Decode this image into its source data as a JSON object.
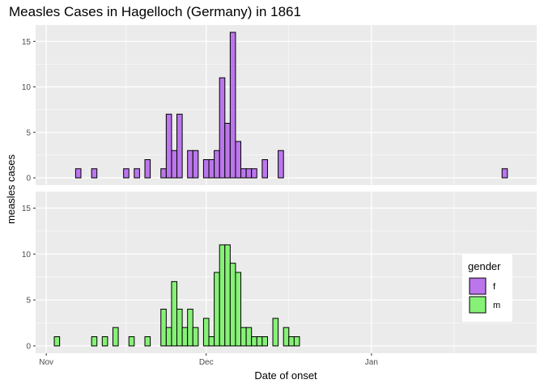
{
  "chart_data": {
    "type": "bar",
    "title": "Measles Cases in Hagelloch (Germany) in 1861",
    "xlabel": "Date of onset",
    "ylabel": "measles cases",
    "ylim": [
      0,
      16.8
    ],
    "xlim": [
      "1860-10-30",
      "1861-02-01"
    ],
    "y_ticks": [
      0,
      5,
      10,
      15
    ],
    "x_ticks": [
      {
        "date": "1860-11-01",
        "label": "Nov"
      },
      {
        "date": "1860-12-01",
        "label": "Dec"
      },
      {
        "date": "1861-01-01",
        "label": "Jan"
      }
    ],
    "grid": true,
    "legend": {
      "title": "gender",
      "position": "right",
      "items": [
        {
          "label": "f",
          "color": "#bb76ec"
        },
        {
          "label": "m",
          "color": "#86f176"
        }
      ]
    },
    "panels": [
      {
        "name": "f",
        "color": "#bb76ec",
        "bars": [
          {
            "date": "1860-11-07",
            "value": 1
          },
          {
            "date": "1860-11-10",
            "value": 1
          },
          {
            "date": "1860-11-16",
            "value": 1
          },
          {
            "date": "1860-11-18",
            "value": 1
          },
          {
            "date": "1860-11-20",
            "value": 2
          },
          {
            "date": "1860-11-23",
            "value": 1
          },
          {
            "date": "1860-11-24",
            "value": 7
          },
          {
            "date": "1860-11-25",
            "value": 3
          },
          {
            "date": "1860-11-26",
            "value": 7
          },
          {
            "date": "1860-11-28",
            "value": 3
          },
          {
            "date": "1860-11-29",
            "value": 3
          },
          {
            "date": "1860-12-01",
            "value": 2
          },
          {
            "date": "1860-12-02",
            "value": 2
          },
          {
            "date": "1860-12-03",
            "value": 3
          },
          {
            "date": "1860-12-04",
            "value": 11
          },
          {
            "date": "1860-12-05",
            "value": 6
          },
          {
            "date": "1860-12-06",
            "value": 16
          },
          {
            "date": "1860-12-07",
            "value": 4
          },
          {
            "date": "1860-12-08",
            "value": 1
          },
          {
            "date": "1860-12-09",
            "value": 1
          },
          {
            "date": "1860-12-10",
            "value": 1
          },
          {
            "date": "1860-12-12",
            "value": 2
          },
          {
            "date": "1860-12-15",
            "value": 3
          },
          {
            "date": "1861-01-26",
            "value": 1
          }
        ]
      },
      {
        "name": "m",
        "color": "#86f176",
        "bars": [
          {
            "date": "1860-11-03",
            "value": 1
          },
          {
            "date": "1860-11-10",
            "value": 1
          },
          {
            "date": "1860-11-12",
            "value": 1
          },
          {
            "date": "1860-11-14",
            "value": 2
          },
          {
            "date": "1860-11-17",
            "value": 1
          },
          {
            "date": "1860-11-20",
            "value": 1
          },
          {
            "date": "1860-11-23",
            "value": 4
          },
          {
            "date": "1860-11-24",
            "value": 2
          },
          {
            "date": "1860-11-25",
            "value": 7
          },
          {
            "date": "1860-11-26",
            "value": 4
          },
          {
            "date": "1860-11-27",
            "value": 2
          },
          {
            "date": "1860-11-28",
            "value": 4
          },
          {
            "date": "1860-11-29",
            "value": 2
          },
          {
            "date": "1860-12-01",
            "value": 3
          },
          {
            "date": "1860-12-02",
            "value": 1
          },
          {
            "date": "1860-12-03",
            "value": 8
          },
          {
            "date": "1860-12-04",
            "value": 11
          },
          {
            "date": "1860-12-05",
            "value": 11
          },
          {
            "date": "1860-12-06",
            "value": 9
          },
          {
            "date": "1860-12-07",
            "value": 8
          },
          {
            "date": "1860-12-08",
            "value": 2
          },
          {
            "date": "1860-12-09",
            "value": 2
          },
          {
            "date": "1860-12-10",
            "value": 1
          },
          {
            "date": "1860-12-11",
            "value": 1
          },
          {
            "date": "1860-12-12",
            "value": 1
          },
          {
            "date": "1860-12-14",
            "value": 3
          },
          {
            "date": "1860-12-16",
            "value": 2
          },
          {
            "date": "1860-12-17",
            "value": 1
          },
          {
            "date": "1860-12-18",
            "value": 1
          }
        ]
      }
    ]
  }
}
